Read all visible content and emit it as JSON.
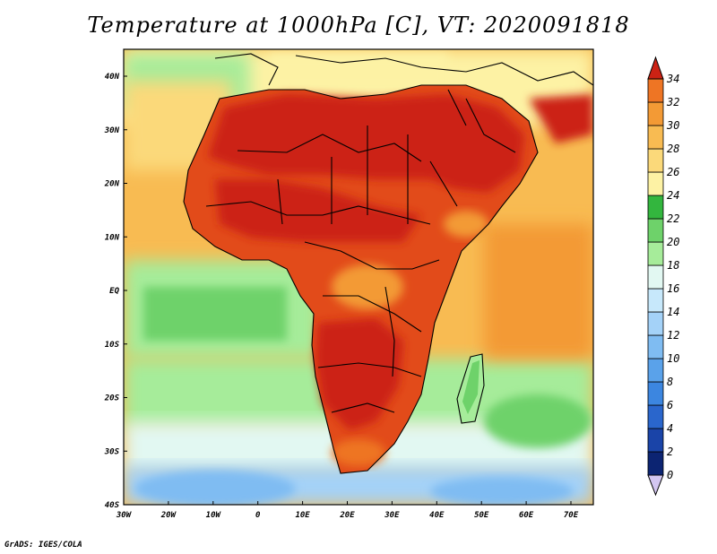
{
  "title": "Temperature at 1000hPa [C], VT: 2020091818",
  "credit": "GrADS: IGES/COLA",
  "map": {
    "lat_labels": [
      "40N",
      "30N",
      "20N",
      "10N",
      "EQ",
      "10S",
      "20S",
      "30S",
      "40S"
    ],
    "lon_labels": [
      "30W",
      "20W",
      "10W",
      "0",
      "10E",
      "20E",
      "30E",
      "40E",
      "50E",
      "60E",
      "70E"
    ]
  },
  "colorbar": {
    "units": "C",
    "levels": [
      "0",
      "2",
      "4",
      "6",
      "8",
      "10",
      "12",
      "14",
      "16",
      "18",
      "20",
      "22",
      "24",
      "26",
      "28",
      "30",
      "32",
      "34"
    ],
    "colors": [
      "#0c2472",
      "#1a44a8",
      "#2a66cc",
      "#3c86e0",
      "#5aa2ea",
      "#7fbcf2",
      "#a4d2f8",
      "#c7e8fb",
      "#e2f8f2",
      "#a6ec9a",
      "#6ed26a",
      "#33b63e",
      "#fdf2a4",
      "#fbd97a",
      "#f8bb52",
      "#f39a35",
      "#ee7524",
      "#e24b1a",
      "#cc2214"
    ],
    "bottom_arrow_color": "#d3c6f1"
  }
}
